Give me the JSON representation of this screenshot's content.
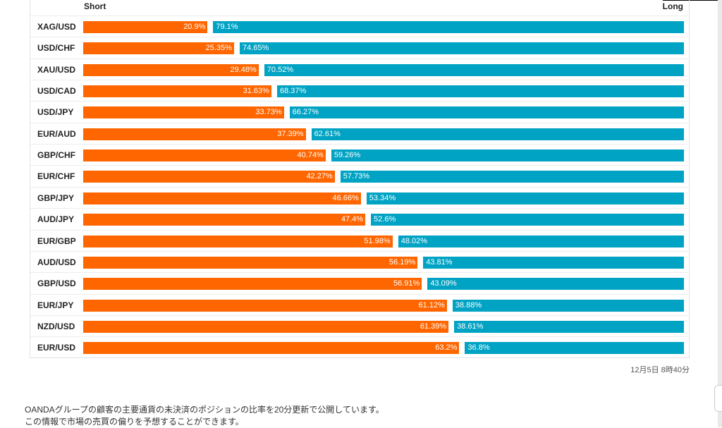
{
  "chart_data": {
    "type": "bar",
    "stacked": true,
    "orientation": "horizontal",
    "legend": {
      "short_label": "Short",
      "long_label": "Long"
    },
    "colors": {
      "short": "#ff6600",
      "long": "#00a3c4"
    },
    "rows": [
      {
        "pair": "XAG/USD",
        "short": 20.9,
        "long": 79.1,
        "short_text": "20.9%",
        "long_text": "79.1%"
      },
      {
        "pair": "USD/CHF",
        "short": 25.35,
        "long": 74.65,
        "short_text": "25.35%",
        "long_text": "74.65%"
      },
      {
        "pair": "XAU/USD",
        "short": 29.48,
        "long": 70.52,
        "short_text": "29.48%",
        "long_text": "70.52%"
      },
      {
        "pair": "USD/CAD",
        "short": 31.63,
        "long": 68.37,
        "short_text": "31.63%",
        "long_text": "68.37%"
      },
      {
        "pair": "USD/JPY",
        "short": 33.73,
        "long": 66.27,
        "short_text": "33.73%",
        "long_text": "66.27%"
      },
      {
        "pair": "EUR/AUD",
        "short": 37.39,
        "long": 62.61,
        "short_text": "37.39%",
        "long_text": "62.61%"
      },
      {
        "pair": "GBP/CHF",
        "short": 40.74,
        "long": 59.26,
        "short_text": "40.74%",
        "long_text": "59.26%"
      },
      {
        "pair": "EUR/CHF",
        "short": 42.27,
        "long": 57.73,
        "short_text": "42.27%",
        "long_text": "57.73%"
      },
      {
        "pair": "GBP/JPY",
        "short": 46.66,
        "long": 53.34,
        "short_text": "46.66%",
        "long_text": "53.34%"
      },
      {
        "pair": "AUD/JPY",
        "short": 47.4,
        "long": 52.6,
        "short_text": "47.4%",
        "long_text": "52.6%"
      },
      {
        "pair": "EUR/GBP",
        "short": 51.98,
        "long": 48.02,
        "short_text": "51.98%",
        "long_text": "48.02%"
      },
      {
        "pair": "AUD/USD",
        "short": 56.19,
        "long": 43.81,
        "short_text": "56.19%",
        "long_text": "43.81%"
      },
      {
        "pair": "GBP/USD",
        "short": 56.91,
        "long": 43.09,
        "short_text": "56.91%",
        "long_text": "43.09%"
      },
      {
        "pair": "EUR/JPY",
        "short": 61.12,
        "long": 38.88,
        "short_text": "61.12%",
        "long_text": "38.88%"
      },
      {
        "pair": "NZD/USD",
        "short": 61.39,
        "long": 38.61,
        "short_text": "61.39%",
        "long_text": "38.61%"
      },
      {
        "pair": "EUR/USD",
        "short": 63.2,
        "long": 36.8,
        "short_text": "63.2%",
        "long_text": "36.8%"
      }
    ]
  },
  "timestamp": "12月5日 8時40分",
  "footer": {
    "line1": "OANDAグループの顧客の主要通貨の未決済のポジションの比率を20分更新で公開しています。",
    "line2": "この情報で市場の売買の偏りを予想することができます。"
  }
}
